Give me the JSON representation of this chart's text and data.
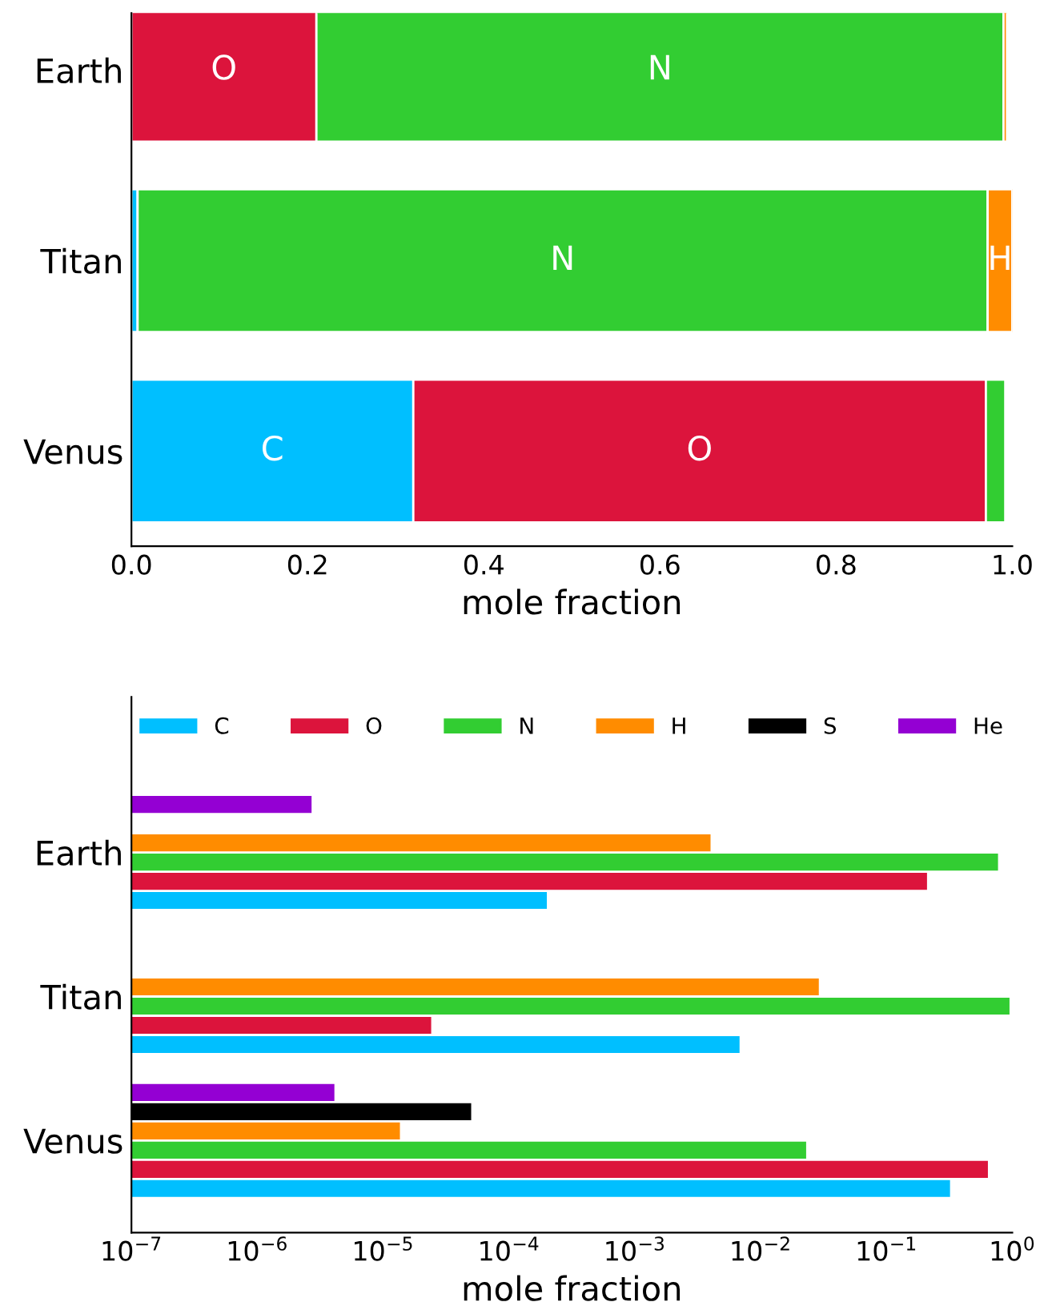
{
  "chart_data": [
    {
      "type": "bar",
      "orientation": "horizontal",
      "stacked": true,
      "categories": [
        "Earth",
        "Titan",
        "Venus"
      ],
      "xlabel": "mole fraction",
      "xlim": [
        0,
        1
      ],
      "xticks": [
        {
          "value": 0,
          "label": "0.0"
        },
        0.2,
        0.4,
        0.6,
        0.8,
        {
          "value": 1,
          "label": "1.0"
        }
      ],
      "grid": false,
      "legend": false,
      "series": [
        {
          "color": "#00bfff",
          "values": [
            null,
            0.007,
            0.32
          ],
          "value_labels": [
            null,
            null,
            "C"
          ]
        },
        {
          "color": "#dc143c",
          "values": [
            0.21,
            null,
            0.65
          ],
          "value_labels": [
            "O",
            null,
            "O"
          ]
        },
        {
          "color": "#32cd32",
          "values": [
            0.78,
            0.965,
            0.022
          ],
          "value_labels": [
            "N",
            "N",
            null
          ]
        },
        {
          "color": "#ff8c00",
          "values": [
            0.004,
            0.028,
            null
          ],
          "value_labels": [
            null,
            "H",
            null
          ]
        }
      ]
    },
    {
      "type": "bar",
      "orientation": "horizontal",
      "categories": [
        "Earth",
        "Titan",
        "Venus"
      ],
      "xlabel": "mole fraction",
      "log": "x",
      "xlim": [
        1e-07,
        1
      ],
      "xticks": [
        {
          "value": 1e-07,
          "label": "10$^{−7}$"
        },
        {
          "value": 1e-06,
          "label": "10$^{−6}$"
        },
        {
          "value": 1e-05,
          "label": "10$^{−5}$"
        },
        {
          "value": 0.0001,
          "label": "10$^{−4}$"
        },
        {
          "value": 0.001,
          "label": "10$^{−3}$"
        },
        {
          "value": 0.01,
          "label": "10$^{−2}$"
        },
        {
          "value": 0.1,
          "label": "10$^{−1}$"
        },
        {
          "value": 1,
          "label": "10$^{0}$"
        }
      ],
      "grid": false,
      "legend": "top",
      "series": [
        {
          "name": "C",
          "color": "#00bfff",
          "values": [
            0.0002,
            0.0068,
            0.32
          ]
        },
        {
          "name": "O",
          "color": "#dc143c",
          "values": [
            0.21,
            2.4e-05,
            0.64
          ]
        },
        {
          "name": "N",
          "color": "#32cd32",
          "values": [
            0.77,
            0.95,
            0.023
          ]
        },
        {
          "name": "H",
          "color": "#ff8c00",
          "values": [
            0.004,
            0.029,
            1.35e-05
          ]
        },
        {
          "name": "S",
          "color": "#000000",
          "values": [
            null,
            null,
            5e-05
          ]
        },
        {
          "name": "He",
          "color": "#9400d3",
          "values": [
            2.6e-06,
            null,
            4e-06
          ]
        }
      ]
    }
  ]
}
